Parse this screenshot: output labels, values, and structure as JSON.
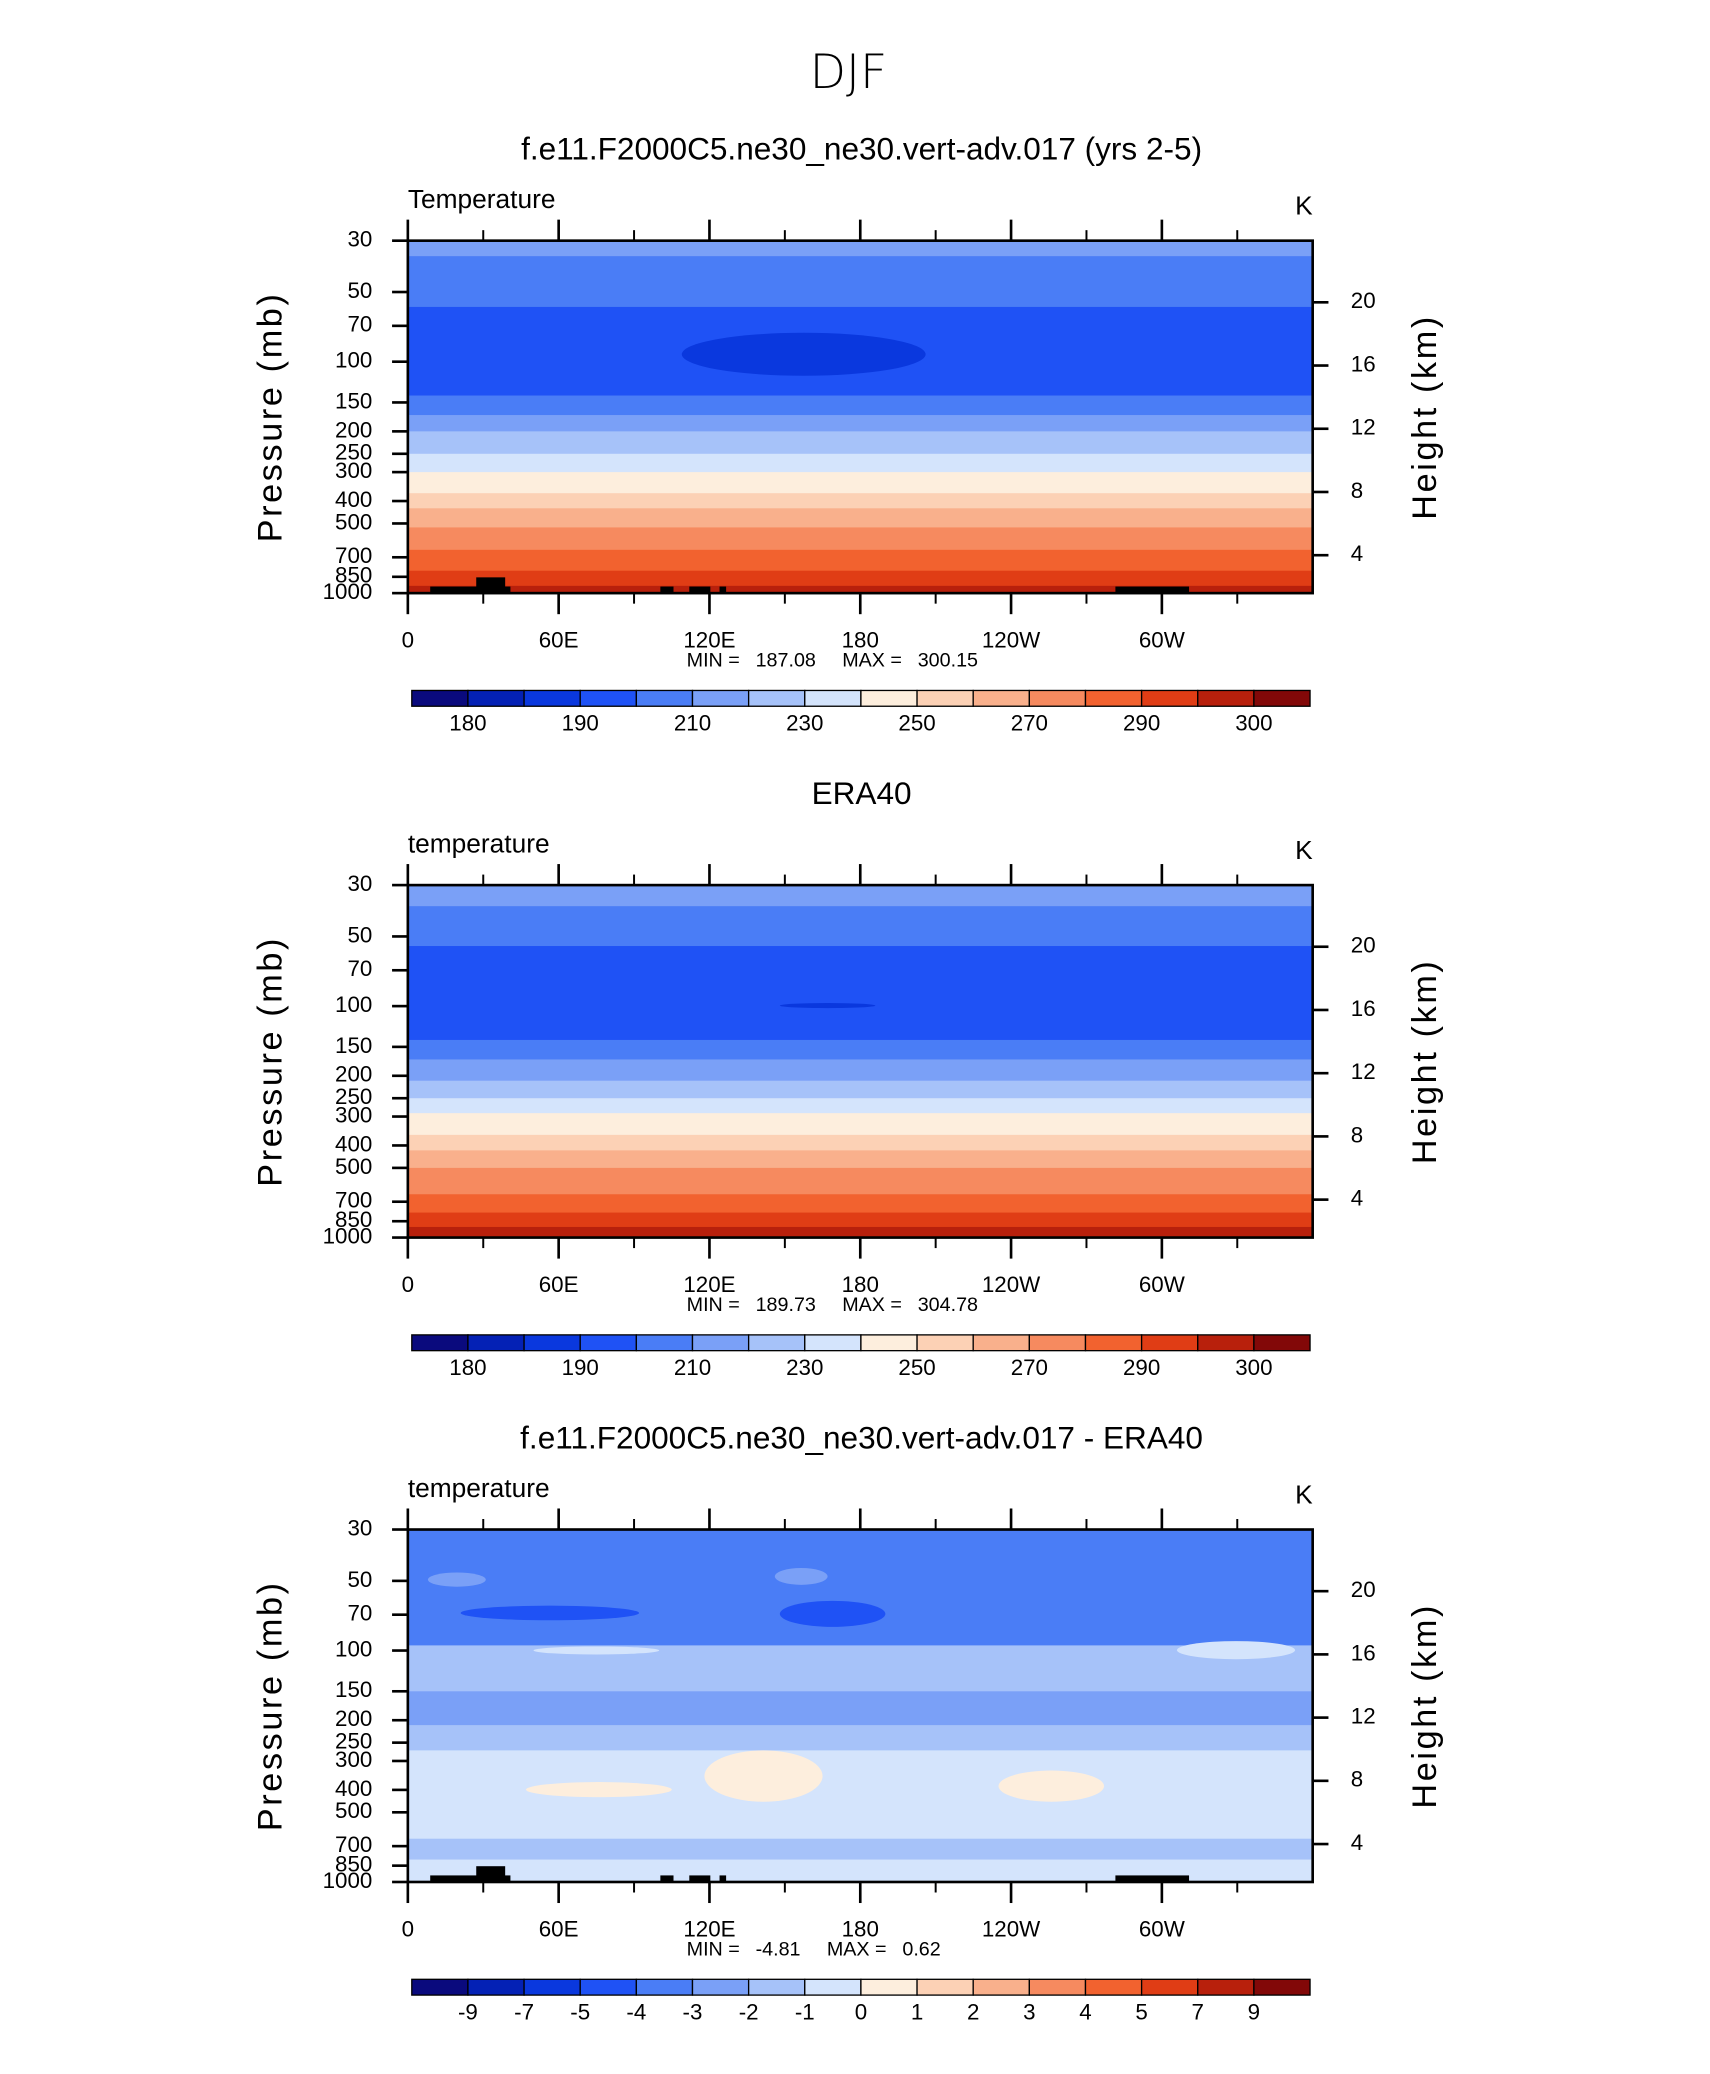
{
  "figure_title": "DJF",
  "chart_data": [
    {
      "type": "contour",
      "title": "f.e11.F2000C5.ne30_ne30.vert-adv.017 (yrs 2-5)",
      "variable": "Temperature",
      "units": "K",
      "ylabel": "Pressure (mb)",
      "y2label": "Height (km)",
      "xlim": [
        0,
        360
      ],
      "xticks": [
        0,
        {
          "value": 60,
          "label": "60E"
        },
        {
          "value": 120,
          "label": "120E"
        },
        180,
        {
          "value": 240,
          "label": "120W"
        },
        {
          "value": 300,
          "label": "60W"
        }
      ],
      "xticks_minor": [
        30,
        90,
        150,
        210,
        270,
        330
      ],
      "ylim": [
        30,
        1000
      ],
      "ylog": true,
      "yticks": [
        30,
        50,
        70,
        100,
        150,
        200,
        250,
        300,
        400,
        500,
        700,
        850,
        1000
      ],
      "y2lim": [
        1.6,
        23.9
      ],
      "y2ticks": [
        4,
        8,
        12,
        16,
        20
      ],
      "levels": [
        180,
        185,
        190,
        200,
        210,
        220,
        230,
        240,
        250,
        260,
        270,
        280,
        290,
        295,
        300
      ],
      "colorbar_ticks": [
        180,
        190,
        210,
        230,
        250,
        270,
        290,
        300
      ],
      "colors": [
        "#0a0a7d",
        "#0421b5",
        "#0a38de",
        "#1f52f5",
        "#4a7df6",
        "#7aa0f7",
        "#a6c2f9",
        "#d4e4fc",
        "#fdeedd",
        "#fcd1b5",
        "#f9b08c",
        "#f68a5f",
        "#f2622f",
        "#e03d15",
        "#b8200c",
        "#820808"
      ],
      "min_label": "MIN =",
      "min": 187.08,
      "max_label": "MAX =",
      "max": 300.15,
      "bands": {
        "p_edges": [
          30,
          35,
          58,
          140,
          170,
          200,
          250,
          300,
          370,
          430,
          520,
          650,
          800,
          930,
          1000
        ],
        "values": [
          215,
          205,
          195,
          205,
          215,
          225,
          235,
          245,
          255,
          265,
          275,
          285,
          292,
          297
        ]
      },
      "patches": [
        {
          "lon": [
            109,
            206
          ],
          "p": [
            75,
            115
          ],
          "value": 188
        }
      ]
    },
    {
      "type": "contour",
      "title": "ERA40",
      "variable": "temperature",
      "units": "K",
      "ylabel": "Pressure (mb)",
      "y2label": "Height (km)",
      "xlim": [
        0,
        360
      ],
      "xticks": [
        0,
        {
          "value": 60,
          "label": "60E"
        },
        {
          "value": 120,
          "label": "120E"
        },
        180,
        {
          "value": 240,
          "label": "120W"
        },
        {
          "value": 300,
          "label": "60W"
        }
      ],
      "xticks_minor": [
        30,
        90,
        150,
        210,
        270,
        330
      ],
      "ylim": [
        30,
        1000
      ],
      "ylog": true,
      "yticks": [
        30,
        50,
        70,
        100,
        150,
        200,
        250,
        300,
        400,
        500,
        700,
        850,
        1000
      ],
      "y2lim": [
        1.6,
        23.9
      ],
      "y2ticks": [
        4,
        8,
        12,
        16,
        20
      ],
      "levels": [
        180,
        185,
        190,
        200,
        210,
        220,
        230,
        240,
        250,
        260,
        270,
        280,
        290,
        295,
        300
      ],
      "colorbar_ticks": [
        180,
        190,
        210,
        230,
        250,
        270,
        290,
        300
      ],
      "colors": [
        "#0a0a7d",
        "#0421b5",
        "#0a38de",
        "#1f52f5",
        "#4a7df6",
        "#7aa0f7",
        "#a6c2f9",
        "#d4e4fc",
        "#fdeedd",
        "#fcd1b5",
        "#f9b08c",
        "#f68a5f",
        "#f2622f",
        "#e03d15",
        "#b8200c",
        "#820808"
      ],
      "min_label": "MIN =",
      "min": 189.73,
      "max_label": "MAX =",
      "max": 304.78,
      "bands": {
        "p_edges": [
          30,
          37,
          55,
          140,
          170,
          210,
          250,
          290,
          360,
          420,
          500,
          650,
          780,
          900,
          1000
        ],
        "values": [
          215,
          205,
          195,
          205,
          215,
          225,
          235,
          245,
          255,
          265,
          275,
          285,
          292,
          297
        ]
      },
      "patches": [
        {
          "lon": [
            148,
            186
          ],
          "p": [
            97,
            102
          ],
          "value": 189
        }
      ]
    },
    {
      "type": "contour",
      "title": "f.e11.F2000C5.ne30_ne30.vert-adv.017 - ERA40",
      "variable": "temperature",
      "units": "K",
      "ylabel": "Pressure (mb)",
      "y2label": "Height (km)",
      "xlim": [
        0,
        360
      ],
      "xticks": [
        0,
        {
          "value": 60,
          "label": "60E"
        },
        {
          "value": 120,
          "label": "120E"
        },
        180,
        {
          "value": 240,
          "label": "120W"
        },
        {
          "value": 300,
          "label": "60W"
        }
      ],
      "xticks_minor": [
        30,
        90,
        150,
        210,
        270,
        330
      ],
      "ylim": [
        30,
        1000
      ],
      "ylog": true,
      "yticks": [
        30,
        50,
        70,
        100,
        150,
        200,
        250,
        300,
        400,
        500,
        700,
        850,
        1000
      ],
      "y2lim": [
        1.6,
        23.9
      ],
      "y2ticks": [
        4,
        8,
        12,
        16,
        20
      ],
      "levels": [
        -9,
        -7,
        -5,
        -4,
        -3,
        -2,
        -1,
        0,
        1,
        2,
        3,
        4,
        5,
        7,
        9
      ],
      "colorbar_ticks": [
        -9,
        -7,
        -5,
        -4,
        -3,
        -2,
        -1,
        0,
        1,
        2,
        3,
        4,
        5,
        7,
        9
      ],
      "colors": [
        "#0a0a7d",
        "#0421b5",
        "#0a38de",
        "#1f52f5",
        "#4a7df6",
        "#7aa0f7",
        "#a6c2f9",
        "#d4e4fc",
        "#fdeedd",
        "#fcd1b5",
        "#f9b08c",
        "#f68a5f",
        "#f2622f",
        "#e03d15",
        "#b8200c",
        "#820808"
      ],
      "min_label": "MIN =",
      "min": -4.81,
      "max_label": "MAX =",
      "max": 0.62,
      "bands": {
        "p_edges": [
          30,
          95,
          150,
          210,
          270,
          650,
          800,
          1000
        ],
        "values": [
          -3.5,
          -1.5,
          -2.5,
          -1.5,
          -0.5,
          -1.5,
          -0.5
        ]
      },
      "patches": [
        {
          "lon": [
            118,
            165
          ],
          "p": [
            270,
            450
          ],
          "value": 0.3
        },
        {
          "lon": [
            47,
            105
          ],
          "p": [
            370,
            430
          ],
          "value": 0.3
        },
        {
          "lon": [
            235,
            277
          ],
          "p": [
            330,
            450
          ],
          "value": 0.3
        },
        {
          "lon": [
            21,
            92
          ],
          "p": [
            64,
            74
          ],
          "value": -4.5
        },
        {
          "lon": [
            148,
            190
          ],
          "p": [
            61,
            79
          ],
          "value": -4.5
        },
        {
          "lon": [
            306,
            353
          ],
          "p": [
            91,
            109
          ],
          "value": -0.5
        },
        {
          "lon": [
            50,
            100
          ],
          "p": [
            96,
            104
          ],
          "value": -0.5
        },
        {
          "lon": [
            8,
            31
          ],
          "p": [
            46,
            53
          ],
          "value": -2.5
        },
        {
          "lon": [
            146,
            167
          ],
          "p": [
            44,
            52
          ],
          "value": -2.5
        }
      ]
    }
  ]
}
